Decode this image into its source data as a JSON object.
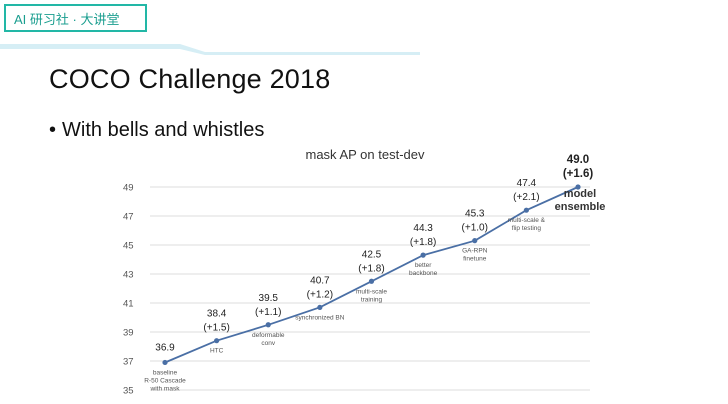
{
  "header": {
    "brand_text": "AI 研习社 · 大讲堂",
    "accent_color": "#22b7a6",
    "band_color": "#d6eef5"
  },
  "slide": {
    "title": "COCO Challenge 2018",
    "bullet_symbol": "•",
    "bullet": "With bells and whistles"
  },
  "chart_data": {
    "type": "line",
    "title": "mask AP on test-dev",
    "xlabel": "",
    "ylabel": "",
    "ylim": [
      35,
      49
    ],
    "yticks": [
      35,
      37,
      39,
      41,
      43,
      45,
      47,
      49
    ],
    "grid": true,
    "line_color": "#4a6fa5",
    "series": [
      {
        "points": [
          {
            "value": 36.9,
            "label": "36.9",
            "gain": "",
            "step": [
              "baseline",
              "R-50 Cascade",
              "with mask"
            ]
          },
          {
            "value": 38.4,
            "label": "38.4",
            "gain": "(+1.5)",
            "step": [
              "HTC"
            ]
          },
          {
            "value": 39.5,
            "label": "39.5",
            "gain": "(+1.1)",
            "step": [
              "deformable",
              "conv"
            ]
          },
          {
            "value": 40.7,
            "label": "40.7",
            "gain": "(+1.2)",
            "step": [
              "synchronized BN"
            ]
          },
          {
            "value": 42.5,
            "label": "42.5",
            "gain": "(+1.8)",
            "step": [
              "multi-scale",
              "training"
            ]
          },
          {
            "value": 44.3,
            "label": "44.3",
            "gain": "(+1.8)",
            "step": [
              "better",
              "backbone"
            ]
          },
          {
            "value": 45.3,
            "label": "45.3",
            "gain": "(+1.0)",
            "step": [
              "GA-RPN",
              "finetune"
            ]
          },
          {
            "value": 47.4,
            "label": "47.4",
            "gain": "(+2.1)",
            "step": [
              "multi-scale &",
              "flip testing"
            ]
          },
          {
            "value": 49.0,
            "label": "49.0",
            "gain": "(+1.6)",
            "step": [
              "model",
              "ensemble"
            ],
            "emphasis": true
          }
        ]
      }
    ]
  }
}
